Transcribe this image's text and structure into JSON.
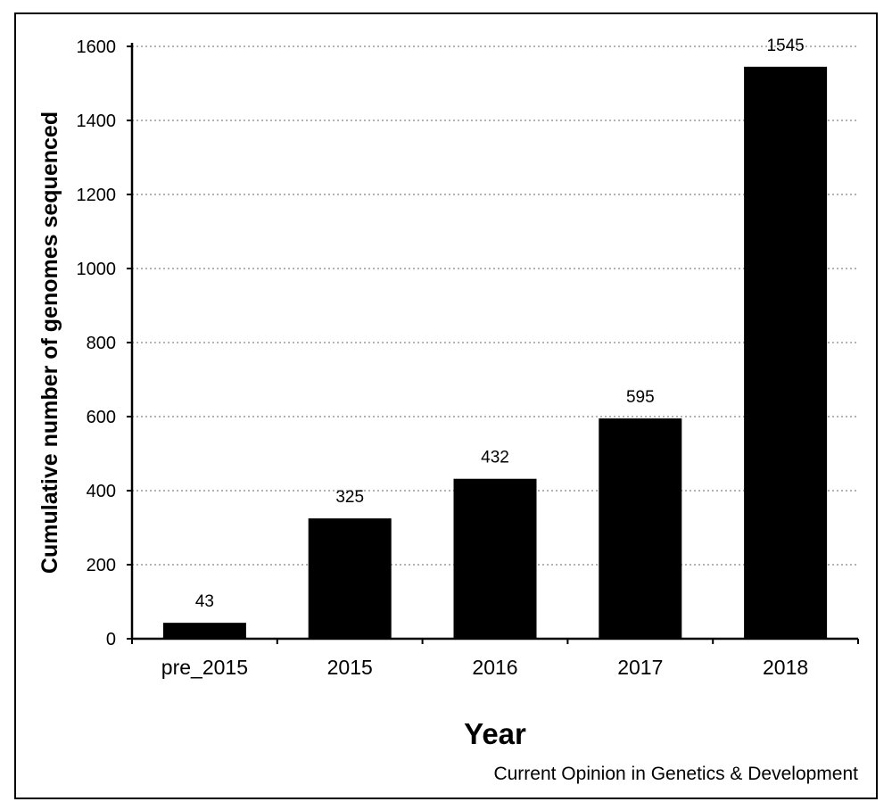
{
  "chart_data": {
    "type": "bar",
    "categories": [
      "pre_2015",
      "2015",
      "2016",
      "2017",
      "2018"
    ],
    "values": [
      43,
      325,
      432,
      595,
      1545
    ],
    "data_labels": [
      "43",
      "325",
      "432",
      "595",
      "1545"
    ],
    "xlabel": "Year",
    "ylabel": "Cumulative number of genomes sequenced",
    "ylim": [
      0,
      1600
    ],
    "yticks": [
      0,
      200,
      400,
      600,
      800,
      1000,
      1200,
      1400,
      1600
    ],
    "grid": true,
    "grid_style": "dotted",
    "bar_color": "#000000"
  },
  "caption": "Current Opinion in Genetics & Development"
}
